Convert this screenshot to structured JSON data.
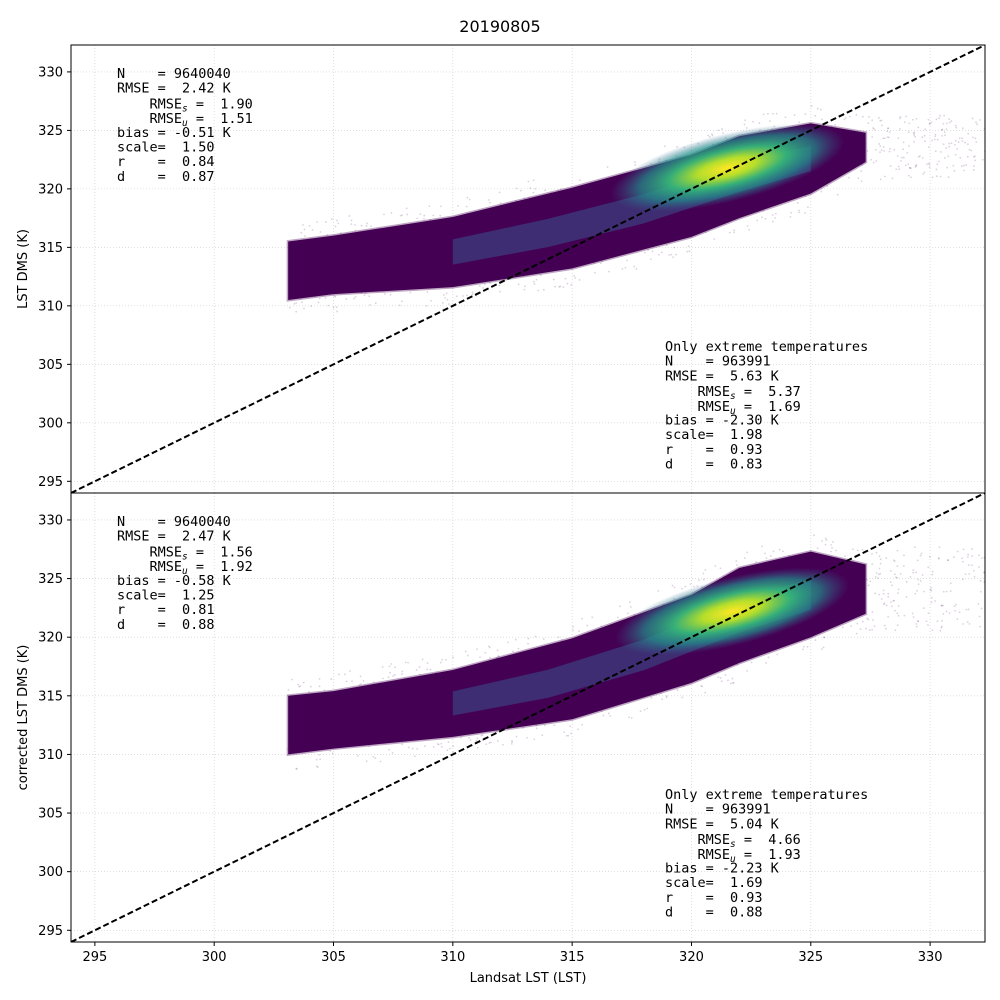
{
  "chart_data": {
    "title": "20190805",
    "type": "scatter",
    "style": "density scatter (viridis colormap) with dashed 1:1 reference line",
    "x_axis": {
      "label": "Landsat LST (LST)",
      "lim": [
        294,
        332.3
      ],
      "ticks": [
        295,
        300,
        305,
        310,
        315,
        320,
        325,
        330
      ]
    },
    "panels": [
      {
        "id": "top",
        "ylabel": "LST DMS (K)",
        "ylim": [
          294,
          332.3
        ],
        "yticks": [
          295,
          300,
          305,
          310,
          315,
          320,
          325,
          330
        ],
        "grid": true,
        "reference_line": "1:1",
        "density_shape": {
          "x": [
            303.1,
            305,
            310,
            315,
            320,
            322,
            325,
            327.3
          ],
          "lower": [
            310.5,
            311.0,
            311.6,
            313.2,
            315.9,
            317.5,
            319.6,
            322.3
          ],
          "upper": [
            315.5,
            316.0,
            317.6,
            320.1,
            322.9,
            324.5,
            325.6,
            324.8
          ],
          "peak": [
            321.5,
            321.8
          ]
        },
        "stats_all": [
          "N    = 9640040",
          "RMSE =  2.42 K",
          "    RMSE_s =  1.90",
          "    RMSE_u =  1.51",
          "bias = -0.51 K",
          "scale=  1.50",
          "r    =  0.84",
          "d    =  0.87"
        ],
        "stats_extreme": [
          "Only extreme temperatures",
          "N    = 963991",
          "RMSE =  5.63 K",
          "    RMSE_s =  5.37",
          "    RMSE_u =  1.69",
          "bias = -2.30 K",
          "scale=  1.98",
          "r    =  0.93",
          "d    =  0.83"
        ]
      },
      {
        "id": "bottom",
        "ylabel": "corrected LST DMS (K)",
        "ylim": [
          294,
          332.3
        ],
        "yticks": [
          295,
          300,
          305,
          310,
          315,
          320,
          325,
          330
        ],
        "grid": true,
        "reference_line": "1:1",
        "density_shape": {
          "x": [
            303.1,
            305,
            310,
            315,
            320,
            322,
            325,
            327.3
          ],
          "lower": [
            310.0,
            310.5,
            311.5,
            313.0,
            316.1,
            317.8,
            320.0,
            322.0
          ],
          "upper": [
            315.0,
            315.4,
            317.2,
            319.9,
            323.6,
            325.9,
            327.3,
            326.2
          ],
          "peak": [
            321.7,
            322.2
          ]
        },
        "stats_all": [
          "N    = 9640040",
          "RMSE =  2.47 K",
          "    RMSE_s =  1.56",
          "    RMSE_u =  1.92",
          "bias = -0.58 K",
          "scale=  1.25",
          "r    =  0.81",
          "d    =  0.88"
        ],
        "stats_extreme": [
          "Only extreme temperatures",
          "N    = 963991",
          "RMSE =  5.04 K",
          "    RMSE_s =  4.66",
          "    RMSE_u =  1.93",
          "bias = -2.23 K",
          "scale=  1.69",
          "r    =  0.93",
          "d    =  0.88"
        ]
      }
    ],
    "colors": {
      "viridis_low": "#440154",
      "viridis_mid": "#21918c",
      "viridis_high": "#fde725",
      "reference_line": "#000000",
      "grid": "#cccccc"
    }
  }
}
